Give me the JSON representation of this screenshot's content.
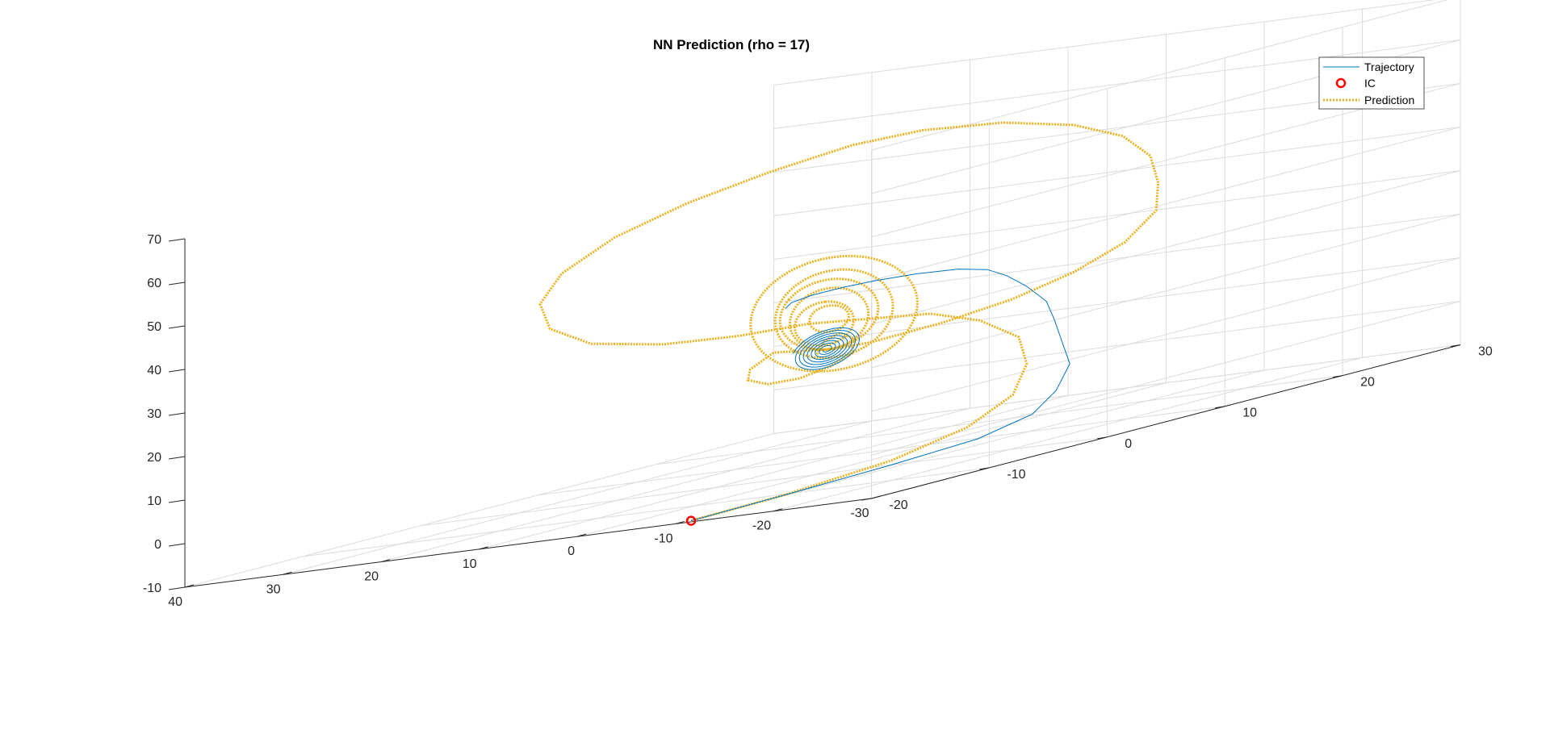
{
  "chart_data": {
    "type": "line",
    "title": "NN Prediction (rho = 17)",
    "xlabel": "",
    "ylabel": "",
    "zlabel": "",
    "xlim": [
      -30,
      40
    ],
    "ylim": [
      -20,
      30
    ],
    "zlim": [
      -10,
      70
    ],
    "x_ticks": [
      40,
      30,
      20,
      10,
      0,
      -10,
      -20,
      -30
    ],
    "y_ticks": [
      -20,
      -10,
      0,
      10,
      20,
      30
    ],
    "z_ticks": [
      -10,
      0,
      10,
      20,
      30,
      40,
      50,
      60,
      70
    ],
    "x_tick_labels": [
      "40",
      "30",
      "20",
      "10",
      "0",
      "-10",
      "-20",
      "-30"
    ],
    "y_tick_labels": [
      "-20",
      "-10",
      "0",
      "10",
      "20",
      "30"
    ],
    "z_tick_labels": [
      "-10",
      "0",
      "10",
      "20",
      "30",
      "40",
      "50",
      "60",
      "70"
    ],
    "grid": true,
    "box": false,
    "legend": {
      "placement": "top-right",
      "entries": [
        "Trajectory",
        "IC",
        "Prediction"
      ]
    },
    "colors": {
      "trajectory": "#0072BD",
      "ic": "#FF0000",
      "prediction": "#EDB120"
    },
    "ic": {
      "x": 1.0,
      "y": -9.5,
      "z": -13.5
    },
    "series": [
      {
        "name": "Trajectory",
        "style": "solid",
        "points": [
          [
            1.0,
            -9.5,
            -13.5
          ],
          [
            -3,
            -5,
            -12
          ],
          [
            -8,
            0,
            -10
          ],
          [
            -12,
            4,
            -8
          ],
          [
            -14,
            7,
            -5
          ],
          [
            -14,
            9,
            -1
          ],
          [
            -13,
            11,
            4
          ],
          [
            -11,
            12,
            9
          ],
          [
            -9,
            13,
            14
          ],
          [
            -7,
            14,
            18
          ],
          [
            -5,
            14,
            22
          ],
          [
            -3,
            14,
            25
          ],
          [
            -1,
            14,
            27
          ],
          [
            2,
            14,
            28
          ],
          [
            5,
            13,
            28.5
          ],
          [
            8,
            12,
            28.5
          ],
          [
            10,
            11,
            28.3
          ],
          [
            12,
            10,
            27.8
          ],
          [
            13,
            9,
            27
          ],
          [
            13,
            8.5,
            26
          ]
        ],
        "spiral": {
          "center": [
            6.9,
            6.9,
            16
          ],
          "amplitude_start": 3.4,
          "amplitude_end": 0.3,
          "turns": 8
        }
      },
      {
        "name": "Prediction",
        "style": "dotted",
        "points": [
          [
            1.0,
            -9.5,
            -13.5
          ],
          [
            -3,
            -5,
            -12
          ],
          [
            -8,
            0,
            -9
          ],
          [
            -11,
            4,
            -5
          ],
          [
            -12,
            7,
            0
          ],
          [
            -11,
            9,
            6
          ],
          [
            -9,
            10,
            12
          ],
          [
            -5,
            10,
            17
          ],
          [
            0,
            10,
            20
          ],
          [
            5,
            9,
            21
          ],
          [
            10,
            8,
            22
          ],
          [
            15,
            6,
            22
          ],
          [
            20,
            4,
            23
          ],
          [
            25,
            2,
            26
          ],
          [
            28,
            1,
            31
          ],
          [
            29,
            1,
            37
          ],
          [
            28,
            2,
            43
          ],
          [
            25,
            4,
            49
          ],
          [
            20,
            6,
            54
          ],
          [
            14,
            8,
            58
          ],
          [
            8,
            10,
            61
          ],
          [
            2,
            11,
            62
          ],
          [
            -5,
            12,
            61
          ],
          [
            -11,
            13,
            58
          ],
          [
            -16,
            13,
            54
          ],
          [
            -20,
            12,
            49
          ],
          [
            -22,
            11,
            43
          ],
          [
            -23,
            10,
            37
          ],
          [
            -21,
            9,
            31
          ],
          [
            -17,
            8,
            26
          ],
          [
            -12,
            7,
            22
          ],
          [
            -6,
            6,
            19
          ],
          [
            0,
            5,
            17
          ],
          [
            4,
            5,
            16.5
          ],
          [
            7,
            5,
            17
          ],
          [
            10,
            5,
            17.5
          ],
          [
            10,
            3,
            15
          ],
          [
            9,
            2,
            13
          ],
          [
            7,
            2,
            11.5
          ],
          [
            5,
            3,
            11.5
          ],
          [
            3,
            4,
            13
          ],
          [
            2,
            5,
            15
          ],
          [
            3,
            6,
            18
          ],
          [
            5,
            6.5,
            19.5
          ],
          [
            7,
            6.8,
            18
          ],
          [
            8,
            7,
            15
          ]
        ],
        "loops": [
          {
            "center": [
              6.0,
              6.8,
              24
            ],
            "a": 6,
            "b": 10,
            "phase": 0.25,
            "steps": 100
          },
          {
            "center": [
              6.5,
              6.8,
              24
            ],
            "a": 5,
            "b": 8,
            "phase": 0.6,
            "steps": 100
          },
          {
            "center": [
              6.5,
              6.8,
              23
            ],
            "a": 4,
            "b": 7,
            "phase": 1.0,
            "steps": 100
          },
          {
            "center": [
              7.0,
              6.8,
              22
            ],
            "a": 3,
            "b": 5,
            "phase": 1.6,
            "steps": 90
          },
          {
            "center": [
              6.0,
              6.8,
              24
            ],
            "a": 8.5,
            "b": 13,
            "phase": 0.1,
            "steps": 110
          },
          {
            "center": [
              6.5,
              6.8,
              23
            ],
            "a": 2,
            "b": 3,
            "phase": 2.0,
            "steps": 80
          }
        ]
      }
    ]
  }
}
